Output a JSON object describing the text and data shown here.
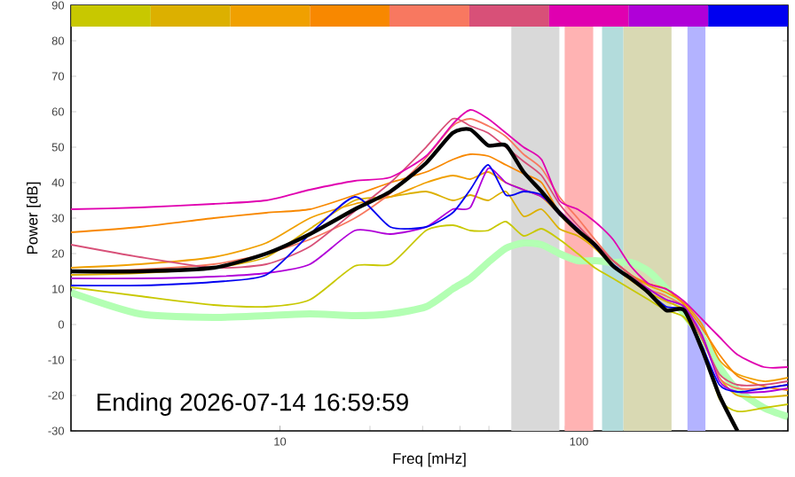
{
  "chart_data": {
    "type": "line",
    "xlabel": "Freq [mHz]",
    "ylabel": "Power [dB]",
    "annotations": [
      "Ending 2026-07-14 16:59:59"
    ],
    "log": "x",
    "xlim": [
      2,
      500
    ],
    "ylim": [
      -30,
      90
    ],
    "xticks": [
      10,
      100
    ],
    "yticks": [
      -30,
      -20,
      -10,
      0,
      10,
      20,
      30,
      40,
      50,
      60,
      70,
      80,
      90
    ],
    "bands": [
      {
        "axis": "x",
        "from": 59.4,
        "to": 86,
        "color": "#d9d9d9"
      },
      {
        "axis": "x",
        "from": 89.6,
        "to": 111.6,
        "color": "#ffb3b3"
      },
      {
        "axis": "x",
        "from": 119.5,
        "to": 140.9,
        "color": "#b3dcdc"
      },
      {
        "axis": "x",
        "from": 140.9,
        "to": 204,
        "color": "#d9d9b3"
      },
      {
        "axis": "x",
        "from": 230.7,
        "to": 264.9,
        "color": "#b3b3ff"
      }
    ],
    "x": [
      2,
      3.4,
      6,
      9,
      12.6,
      17.8,
      23.4,
      30.8,
      37.8,
      43.3,
      49.7,
      57,
      65.3,
      75,
      86,
      99,
      113,
      130,
      149,
      171,
      196,
      225,
      258,
      295,
      339,
      416,
      500
    ],
    "series": [
      {
        "type": "bar",
        "base": [
          84,
          84,
          84,
          84,
          84,
          84,
          84,
          84,
          84
        ],
        "x": [
          2.72,
          5.02,
          9.28,
          17.1,
          31.6,
          58.5,
          108,
          199,
          368
        ],
        "values": [
          6,
          6,
          6,
          6,
          6,
          6,
          6,
          6,
          6
        ],
        "colors": [
          "#c8c800",
          "#dcb000",
          "#f0a000",
          "#f88800",
          "#f87860",
          "#d85078",
          "#e000b0",
          "#b000d8",
          "#0000f0"
        ]
      },
      {
        "color": "#b3ffb3",
        "values": [
          9,
          3,
          2,
          2.5,
          3,
          2.5,
          3,
          5,
          10,
          13,
          17.5,
          21.5,
          23,
          22.5,
          20,
          18,
          18,
          17.5,
          17.5,
          15,
          10,
          3,
          -3.5,
          -12,
          -18.5,
          -23.5,
          -26
        ]
      },
      {
        "color": "#c8c800",
        "values": [
          10.5,
          8,
          5.5,
          5,
          7,
          16.5,
          17,
          26.5,
          28,
          26.5,
          26.5,
          29,
          25,
          27,
          24,
          20,
          16,
          13,
          10,
          7,
          4,
          2,
          -6,
          -21,
          -24.5,
          -23.5,
          -22.5
        ]
      },
      {
        "color": "#dcb000",
        "values": [
          14,
          14.5,
          16,
          19,
          27,
          35,
          36,
          37.5,
          35,
          36.5,
          35,
          37.5,
          30.5,
          32.5,
          27,
          25,
          21.5,
          16.5,
          12.5,
          9,
          6.5,
          4,
          -4,
          -15,
          -20,
          -20.5,
          -20
        ]
      },
      {
        "color": "#f0a000",
        "values": [
          16,
          17,
          19,
          23,
          30,
          34,
          36,
          40,
          42,
          41,
          43,
          40,
          38,
          36,
          31,
          26,
          22,
          18,
          14,
          11,
          9,
          6,
          0,
          -10,
          -14,
          -16,
          -15
        ]
      },
      {
        "color": "#f88800",
        "values": [
          26,
          27.5,
          30,
          31.5,
          32.5,
          36.5,
          40,
          43,
          46.5,
          48,
          47.5,
          45,
          42.5,
          40,
          31.5,
          26.5,
          22.5,
          18,
          14,
          11.5,
          10,
          5.5,
          -1,
          -8.5,
          -14.5,
          -17.5,
          -18.5
        ]
      },
      {
        "color": "#f87860",
        "values": [
          15,
          15.5,
          17,
          20,
          24,
          30,
          37,
          47,
          56,
          58,
          56,
          53,
          48,
          44,
          36,
          30,
          24,
          18,
          14,
          10,
          8,
          5,
          -3,
          -15,
          -18,
          -18,
          -17
        ]
      },
      {
        "color": "#d85078",
        "values": [
          22.5,
          19,
          16,
          17,
          22,
          32,
          40,
          50,
          58,
          56,
          54,
          50,
          46,
          42,
          34,
          28,
          23,
          18,
          14,
          10,
          7,
          5,
          -4,
          -14,
          -17,
          -17,
          -16
        ]
      },
      {
        "color": "#e000b0",
        "values": [
          32.5,
          33,
          34,
          35,
          38,
          40.5,
          41.5,
          47.5,
          56.5,
          60.5,
          58,
          54,
          50,
          46.5,
          35,
          32.5,
          29,
          24,
          16.5,
          11.5,
          10,
          6.5,
          1.5,
          -3.5,
          -8.5,
          -12,
          -12
        ]
      },
      {
        "color": "#b000d8",
        "values": [
          13,
          13,
          13.5,
          14.5,
          17,
          26.5,
          25.5,
          27.5,
          32.5,
          33,
          44,
          40,
          38,
          36,
          32,
          27,
          22,
          17,
          13,
          10,
          7,
          5,
          -3,
          -16,
          -19,
          -19,
          -18
        ]
      },
      {
        "color": "#0000f0",
        "values": [
          11,
          11,
          12,
          14,
          25.5,
          36,
          27.5,
          27.5,
          31.5,
          38,
          45,
          36.5,
          37.5,
          36.5,
          31,
          27,
          22,
          17,
          13,
          9,
          5,
          4,
          -6,
          -17,
          -19,
          -18,
          -17
        ]
      },
      {
        "color": "#000000",
        "values": [
          15,
          15,
          16,
          20,
          25.5,
          32.5,
          37.5,
          45.5,
          54,
          55,
          50.5,
          50.5,
          43,
          37.5,
          31.5,
          26.5,
          22.5,
          16.5,
          13,
          9,
          4,
          4,
          -7,
          -20,
          -30,
          null,
          null
        ]
      }
    ]
  }
}
